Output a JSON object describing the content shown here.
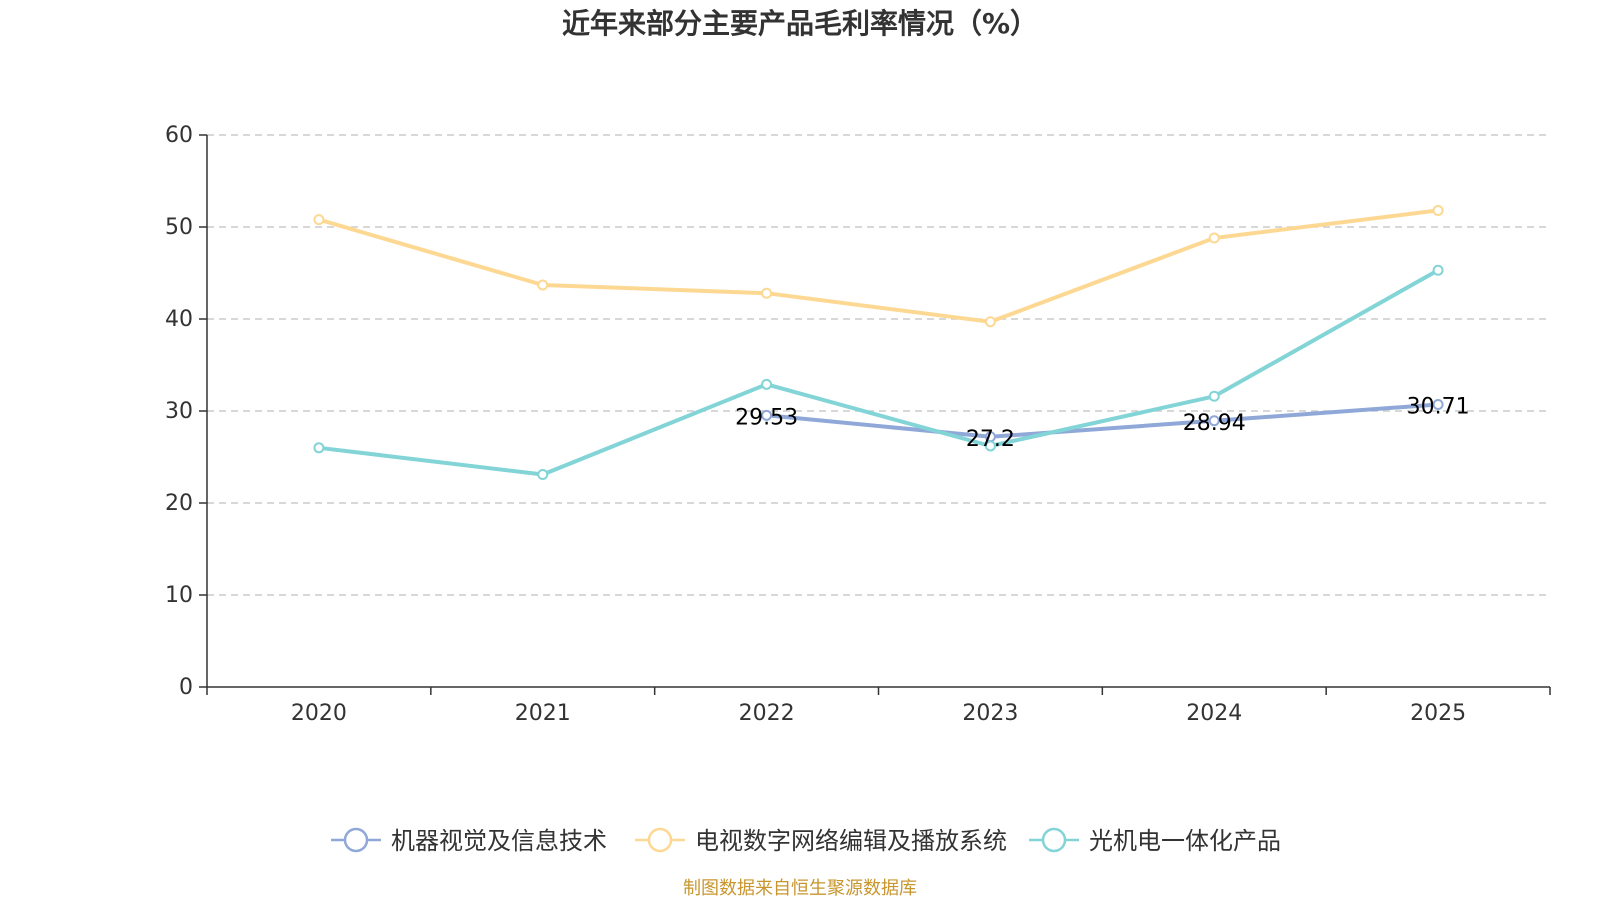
{
  "chart_data": {
    "type": "line",
    "title": "近年来部分主要产品毛利率情况（%）",
    "xlabel": "",
    "ylabel": "",
    "categories": [
      "2020",
      "2021",
      "2022",
      "2023",
      "2024",
      "2025"
    ],
    "ylim": [
      0,
      60
    ],
    "yticks": [
      0,
      10,
      20,
      30,
      40,
      50,
      60
    ],
    "grid": true,
    "legend_position": "bottom",
    "series": [
      {
        "name": "机器视觉及信息技术",
        "color": "#8fa8d8",
        "values": [
          null,
          null,
          29.53,
          27.2,
          28.94,
          30.71
        ],
        "data_labels": [
          "",
          "",
          "29.53",
          "27.2",
          "28.94",
          "30.71"
        ]
      },
      {
        "name": "电视数字网络编辑及播放系统",
        "color": "#fdd893",
        "values": [
          50.8,
          43.7,
          42.8,
          39.7,
          48.8,
          51.8
        ],
        "data_labels": [
          "",
          "",
          "",
          "",
          "",
          ""
        ]
      },
      {
        "name": "光机电一体化产品",
        "color": "#82d4d6",
        "values": [
          26.0,
          23.1,
          32.9,
          26.2,
          31.6,
          45.3
        ],
        "data_labels": [
          "",
          "",
          "",
          "",
          "",
          ""
        ]
      }
    ]
  },
  "footer": {
    "source": "制图数据来自恒生聚源数据库",
    "source_color": "#c8962e"
  }
}
